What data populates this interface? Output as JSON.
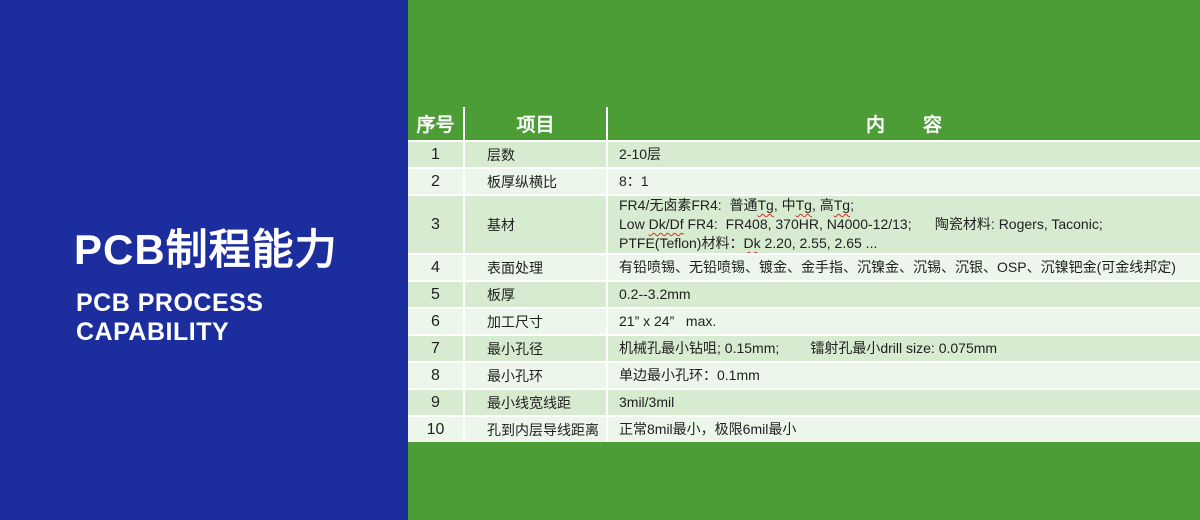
{
  "colors": {
    "page_green": "#4c9d36",
    "panel_blue": "#1c2e9e",
    "band_odd": "#d6ebd0",
    "band_even": "#ecf6ea",
    "header_text": "#ffffff",
    "spellcheck_red": "#d93025"
  },
  "left_panel": {
    "title": "PCB制程能力",
    "subtitle_line1": "PCB PROCESS",
    "subtitle_line2": "CAPABILITY"
  },
  "table": {
    "headers": {
      "no": "序号",
      "item": "项目",
      "content": "内　　容"
    },
    "rows": [
      {
        "no": "1",
        "item": "层数",
        "lines": [
          [
            {
              "t": "2-10层"
            }
          ]
        ]
      },
      {
        "no": "2",
        "item": "板厚纵横比",
        "lines": [
          [
            {
              "t": "8：1"
            }
          ]
        ]
      },
      {
        "no": "3",
        "item": "基材",
        "lines": [
          [
            {
              "t": "FR4/无卤素FR4:  普通"
            },
            {
              "t": "Tg",
              "sq": true
            },
            {
              "t": ", 中"
            },
            {
              "t": "Tg",
              "sq": true
            },
            {
              "t": ", 高"
            },
            {
              "t": "Tg",
              "sq": true
            },
            {
              "t": ";"
            }
          ],
          [
            {
              "t": "Low "
            },
            {
              "t": "Dk/Df",
              "sq": true
            },
            {
              "t": " FR4:  FR408, 370HR, N4000-12/13;      陶瓷材料: Rogers, Taconic;"
            }
          ],
          [
            {
              "t": "PTFE(Teflon)材料："
            },
            {
              "t": "Dk",
              "sq": true
            },
            {
              "t": " 2.20, 2.55, 2.65 ..."
            }
          ]
        ]
      },
      {
        "no": "4",
        "item": "表面处理",
        "lines": [
          [
            {
              "t": "有铅喷锡、无铅喷锡、镀金、金手指、沉镍金、沉锡、沉银、OSP、沉镍钯金(可金线邦定)"
            }
          ]
        ]
      },
      {
        "no": "5",
        "item": "板厚",
        "lines": [
          [
            {
              "t": "0.2--3.2mm"
            }
          ]
        ]
      },
      {
        "no": "6",
        "item": "加工尺寸",
        "lines": [
          [
            {
              "t": "21” x 24”   max."
            }
          ]
        ]
      },
      {
        "no": "7",
        "item": "最小孔径",
        "lines": [
          [
            {
              "t": "机械孔最小钻咀; 0.15mm;        镭射孔最小drill size: 0.075mm"
            }
          ]
        ]
      },
      {
        "no": "8",
        "item": "最小孔环",
        "lines": [
          [
            {
              "t": "单边最小孔环：0.1mm"
            }
          ]
        ]
      },
      {
        "no": "9",
        "item": "最小线宽线距",
        "lines": [
          [
            {
              "t": "3mil/3mil"
            }
          ]
        ]
      },
      {
        "no": "10",
        "item": "孔到内层导线距离",
        "lines": [
          [
            {
              "t": "正常8mil最小，极限6mil最小"
            }
          ]
        ]
      }
    ]
  }
}
